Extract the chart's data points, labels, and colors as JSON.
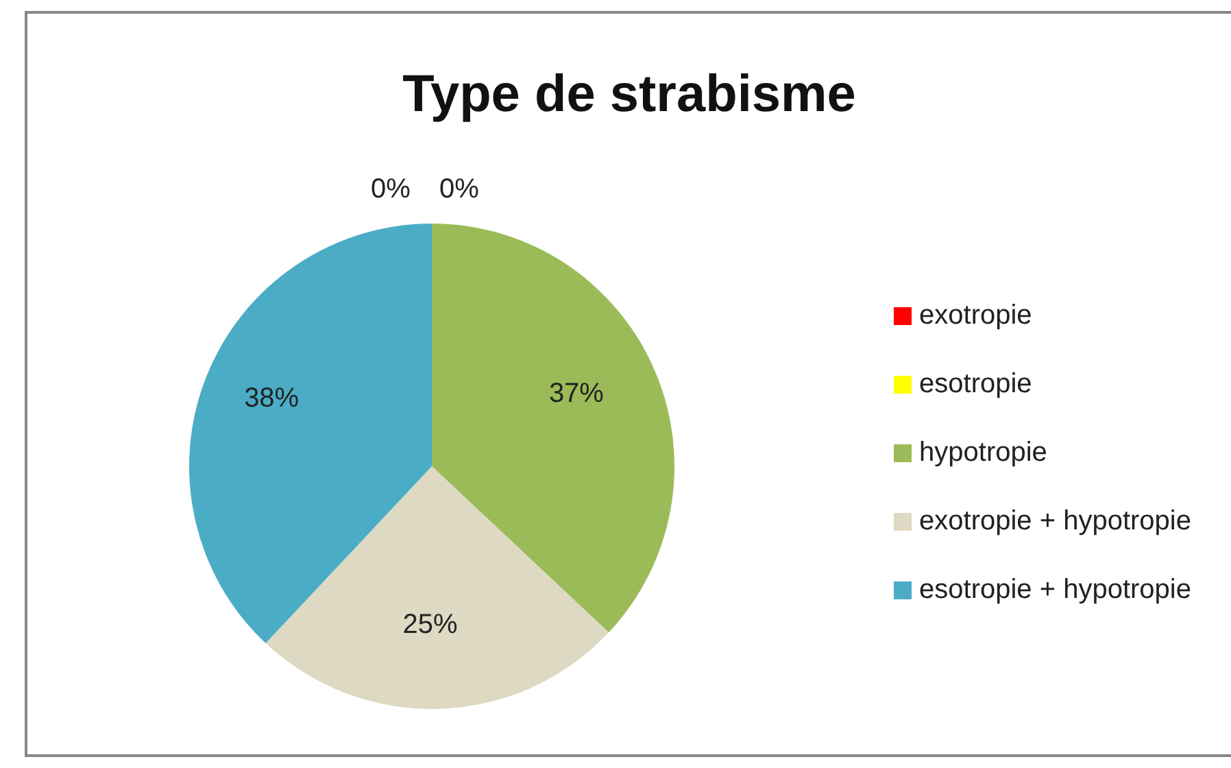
{
  "chart_data": {
    "type": "pie",
    "title": "Type de strabisme",
    "categories": [
      "exotropie",
      "esotropie",
      "hypotropie",
      "exotropie + hypotropie",
      "esotropie + hypotropie"
    ],
    "values": [
      0,
      0,
      37,
      25,
      38
    ],
    "colors": [
      "#ff0000",
      "#ffff00",
      "#9bbb59",
      "#ddd9c3",
      "#4bacc6"
    ],
    "value_labels": [
      "0%",
      "0%",
      "37%",
      "25%",
      "38%"
    ],
    "legend": "right"
  }
}
